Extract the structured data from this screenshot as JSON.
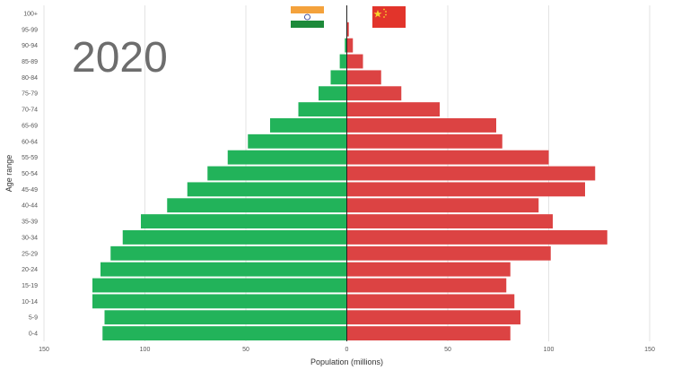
{
  "chart_data": {
    "type": "bar",
    "orientation": "horizontal-pyramid",
    "year_label": "2020",
    "xlabel": "Population (millions)",
    "ylabel": "Age range",
    "xlim": [
      -150,
      150
    ],
    "xticks": [
      -150,
      -100,
      -50,
      0,
      50,
      100,
      150
    ],
    "xtick_labels": [
      "150",
      "100",
      "50",
      "0",
      "50",
      "100",
      "150"
    ],
    "grid": "vertical",
    "categories": [
      "0-4",
      "5-9",
      "10-14",
      "15-19",
      "20-24",
      "25-29",
      "30-34",
      "35-39",
      "40-44",
      "45-49",
      "50-54",
      "55-59",
      "60-64",
      "65-69",
      "70-74",
      "75-79",
      "80-84",
      "85-89",
      "90-94",
      "95-99",
      "100+"
    ],
    "series": [
      {
        "flag": "india-flag",
        "color": "#22b35a",
        "side": "left",
        "values": [
          121,
          120,
          126,
          126,
          122,
          117,
          111,
          102,
          89,
          79,
          69,
          59,
          49,
          38,
          24,
          14,
          8,
          3.5,
          1,
          0.2,
          0.05
        ]
      },
      {
        "flag": "china-flag",
        "color": "#dc4343",
        "side": "right",
        "values": [
          81,
          86,
          83,
          79,
          81,
          101,
          129,
          102,
          95,
          118,
          123,
          100,
          77,
          74,
          46,
          27,
          17,
          8,
          3,
          1,
          0.2
        ]
      }
    ]
  }
}
